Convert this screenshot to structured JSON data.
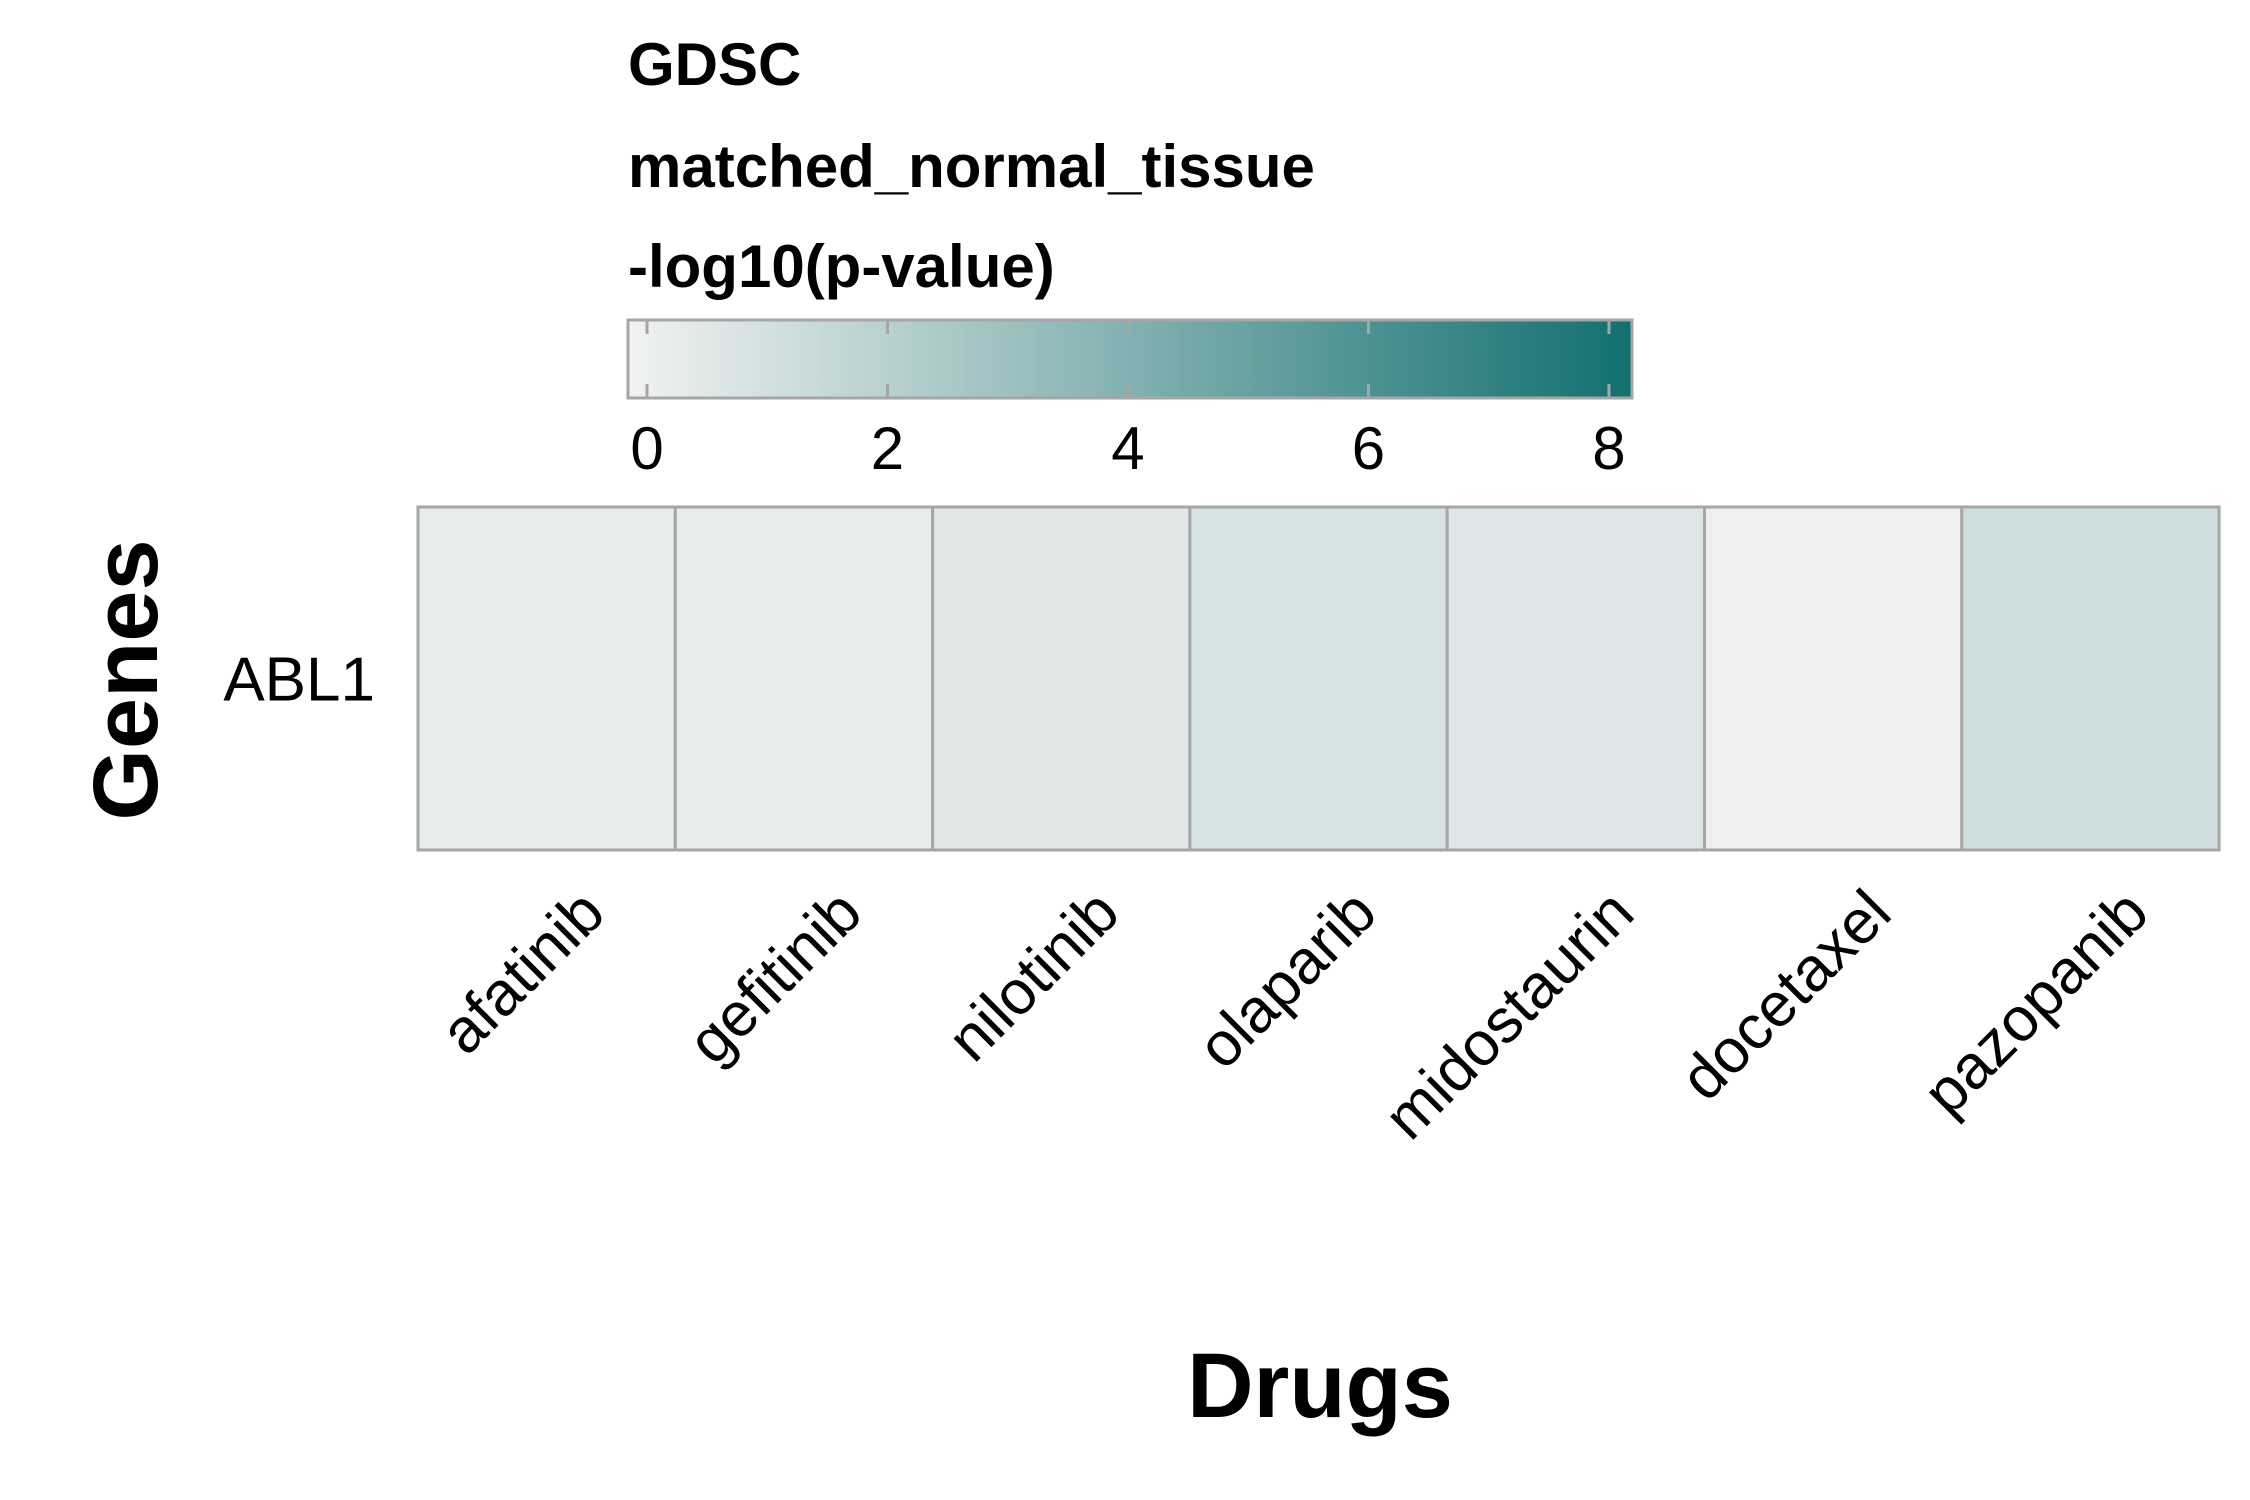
{
  "chart_data": {
    "type": "heatmap",
    "legend": {
      "titles": [
        "GDSC",
        "matched_normal_tissue",
        "-log10(p-value)"
      ],
      "ticks": [
        0,
        2,
        4,
        6,
        8
      ],
      "range": [
        0,
        8.15
      ],
      "color_low": "#f2f2f2",
      "color_high": "#12706f",
      "placement": "top"
    },
    "xlabel": "Drugs",
    "ylabel": "Genes",
    "rows": [
      "ABL1"
    ],
    "columns": [
      "afatinib",
      "gefitinib",
      "nilotinib",
      "olaparib",
      "midostaurin",
      "docetaxel",
      "pazopanib"
    ],
    "values": [
      [
        0.4,
        0.35,
        0.6,
        0.95,
        0.75,
        0.15,
        1.3
      ]
    ],
    "cell_border_color": "#a6a6a6"
  }
}
